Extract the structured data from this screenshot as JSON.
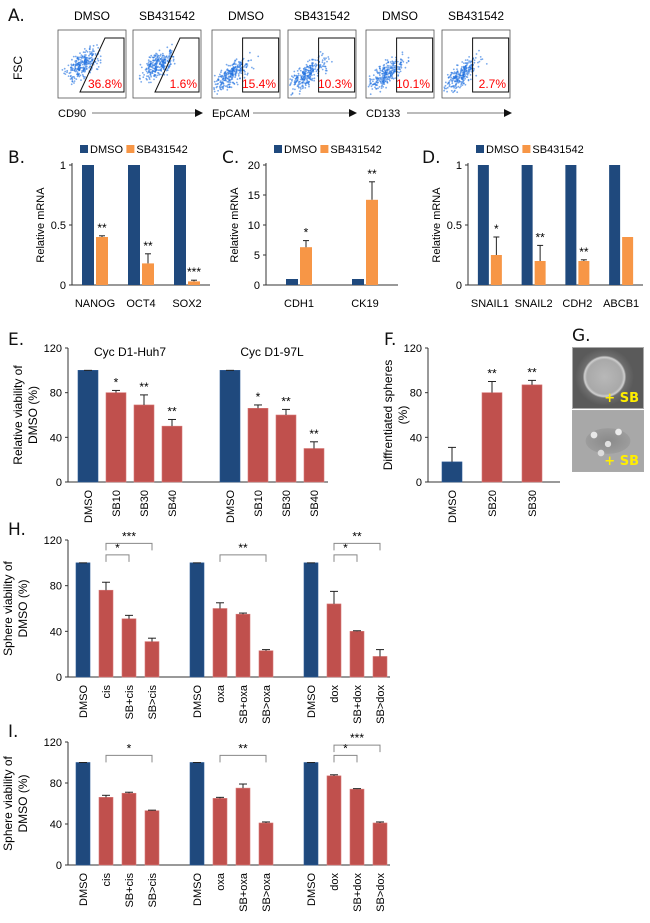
{
  "panel_labels": {
    "A": "A.",
    "B": "B.",
    "C": "C.",
    "D": "D.",
    "E": "E.",
    "F": "F.",
    "G": "G.",
    "H": "H.",
    "I": "I."
  },
  "colors": {
    "dmso": "#1f497d",
    "sb": "#f79646",
    "treat": "#c0504d",
    "pct": "#ff0000",
    "dots": "#1e6fe0",
    "sb_text": "#ffee00"
  },
  "flow": {
    "ylabel": "FSC",
    "plots": [
      {
        "title": "DMSO",
        "pct": "36.8%",
        "marker": "CD90",
        "gate": "slant"
      },
      {
        "title": "SB431542",
        "pct": "1.6%",
        "marker": "CD90",
        "gate": "slant"
      },
      {
        "title": "DMSO",
        "pct": "15.4%",
        "marker": "EpCAM",
        "gate": "rect"
      },
      {
        "title": "SB431542",
        "pct": "10.3%",
        "marker": "EpCAM",
        "gate": "rect"
      },
      {
        "title": "DMSO",
        "pct": "10.1%",
        "marker": "CD133",
        "gate": "rect"
      },
      {
        "title": "SB431542",
        "pct": "2.7%",
        "marker": "CD133",
        "gate": "rect"
      }
    ],
    "markers": [
      "CD90",
      "EpCAM",
      "CD133"
    ]
  },
  "G": {
    "label1": "+ SB",
    "label2": "+ SB"
  },
  "chart_data": [
    {
      "id": "B",
      "type": "bar",
      "ylabel": "Relative mRNA",
      "ylim": [
        0,
        1
      ],
      "yticks": [
        0,
        0.5,
        1
      ],
      "yticklabels": [
        "0",
        "0.5",
        "1"
      ],
      "legend": [
        "DMSO",
        "SB431542"
      ],
      "categories": [
        "NANOG",
        "OCT4",
        "SOX2"
      ],
      "series": [
        {
          "name": "DMSO",
          "values": [
            1,
            1,
            1
          ],
          "err": [
            0,
            0,
            0
          ]
        },
        {
          "name": "SB431542",
          "values": [
            0.4,
            0.18,
            0.03
          ],
          "err": [
            0.01,
            0.08,
            0.01
          ]
        }
      ],
      "sig": [
        "**",
        "**",
        "***"
      ]
    },
    {
      "id": "C",
      "type": "bar",
      "ylabel": "Relative mRNA",
      "ylim": [
        0,
        20
      ],
      "yticks": [
        0,
        5,
        10,
        15,
        20
      ],
      "yticklabels": [
        "0",
        "5",
        "10",
        "15",
        "20"
      ],
      "legend": [
        "DMSO",
        "SB431542"
      ],
      "categories": [
        "CDH1",
        "CK19"
      ],
      "series": [
        {
          "name": "DMSO",
          "values": [
            1,
            1
          ],
          "err": [
            0,
            0
          ]
        },
        {
          "name": "SB431542",
          "values": [
            6.3,
            14.2
          ],
          "err": [
            1.1,
            3.0
          ]
        }
      ],
      "sig": [
        "*",
        "**"
      ]
    },
    {
      "id": "D",
      "type": "bar",
      "ylabel": "Relative mRNA",
      "ylim": [
        0,
        1
      ],
      "yticks": [
        0,
        0.5,
        1
      ],
      "yticklabels": [
        "0",
        "0.5",
        "1"
      ],
      "legend": [
        "DMSO",
        "SB431542"
      ],
      "categories": [
        "SNAIL1",
        "SNAIL2",
        "CDH2",
        "ABCB1"
      ],
      "series": [
        {
          "name": "DMSO",
          "values": [
            1,
            1,
            1,
            1
          ],
          "err": [
            0,
            0,
            0,
            0
          ]
        },
        {
          "name": "SB431542",
          "values": [
            0.25,
            0.2,
            0.2,
            0.4
          ],
          "err": [
            0.15,
            0.13,
            0.01,
            0
          ]
        }
      ],
      "sig": [
        "*",
        "**",
        "**",
        ""
      ]
    },
    {
      "id": "E",
      "type": "bar",
      "ylabel": [
        "Relative viability of",
        "DMSO (%)"
      ],
      "ylim": [
        0,
        120
      ],
      "yticks": [
        0,
        40,
        80,
        120
      ],
      "yticklabels": [
        "0",
        "40",
        "80",
        "120"
      ],
      "groups": [
        {
          "title": "Cyc D1-Huh7",
          "categories": [
            "DMSO",
            "SB10",
            "SB30",
            "SB40"
          ],
          "values": [
            100,
            80,
            69,
            50
          ],
          "err": [
            0,
            2,
            9,
            6
          ],
          "sig": [
            "",
            "*",
            "**",
            "**"
          ]
        },
        {
          "title": "Cyc D1-97L",
          "categories": [
            "DMSO",
            "SB10",
            "SB30",
            "SB40"
          ],
          "values": [
            100,
            66,
            60,
            30
          ],
          "err": [
            0,
            3,
            5,
            6
          ],
          "sig": [
            "",
            "*",
            "**",
            "**"
          ]
        }
      ]
    },
    {
      "id": "F",
      "type": "bar",
      "ylabel": [
        "Diffrentiated spheres",
        "(%)"
      ],
      "ylim": [
        0,
        120
      ],
      "yticks": [
        0,
        40,
        80,
        120
      ],
      "yticklabels": [
        "0",
        "40",
        "80",
        "120"
      ],
      "groups": [
        {
          "title": "",
          "categories": [
            "DMSO",
            "SB20",
            "SB30"
          ],
          "values": [
            18,
            80,
            87
          ],
          "err": [
            13,
            10,
            4
          ],
          "sig": [
            "",
            "**",
            "**"
          ]
        }
      ]
    },
    {
      "id": "H",
      "type": "bar",
      "ylabel": [
        "Sphere viability of",
        "DMSO (%)"
      ],
      "ylim": [
        0,
        120
      ],
      "yticks": [
        0,
        40,
        80,
        120
      ],
      "yticklabels": [
        "0",
        "40",
        "80",
        "120"
      ],
      "groups": [
        {
          "title": "",
          "categories": [
            "DMSO",
            "cis",
            "SB+cis",
            "SB>cis"
          ],
          "values": [
            100,
            76,
            51,
            31
          ],
          "err": [
            0,
            7,
            3,
            3
          ],
          "sig": [],
          "brackets": [
            {
              "from": 1,
              "to": 2,
              "label": "*",
              "level": 0
            },
            {
              "from": 1,
              "to": 3,
              "label": "***",
              "level": 1
            }
          ]
        },
        {
          "title": "",
          "categories": [
            "DMSO",
            "oxa",
            "SB+oxa",
            "SB>oxa"
          ],
          "values": [
            100,
            60,
            55,
            23
          ],
          "err": [
            0,
            5,
            1,
            1
          ],
          "sig": [],
          "brackets": [
            {
              "from": 1,
              "to": 3,
              "label": "**",
              "level": 0
            }
          ]
        },
        {
          "title": "",
          "categories": [
            "DMSO",
            "dox",
            "SB+dox",
            "SB>dox"
          ],
          "values": [
            100,
            64,
            40,
            18
          ],
          "err": [
            0,
            11,
            0.5,
            6
          ],
          "sig": [],
          "brackets": [
            {
              "from": 1,
              "to": 2,
              "label": "*",
              "level": 0
            },
            {
              "from": 1,
              "to": 3,
              "label": "**",
              "level": 1
            }
          ]
        }
      ]
    },
    {
      "id": "I",
      "type": "bar",
      "ylabel": [
        "Sphere viability of",
        "DMSO (%)"
      ],
      "ylim": [
        0,
        120
      ],
      "yticks": [
        0,
        40,
        80,
        120
      ],
      "yticklabels": [
        "0",
        "40",
        "80",
        "120"
      ],
      "groups": [
        {
          "title": "",
          "categories": [
            "DMSO",
            "cis",
            "SB+cis",
            "SB>cis"
          ],
          "values": [
            100,
            66,
            70,
            53
          ],
          "err": [
            0,
            2,
            1,
            0.5
          ],
          "sig": [],
          "brackets": [
            {
              "from": 1,
              "to": 3,
              "label": "*",
              "level": 0
            }
          ]
        },
        {
          "title": "",
          "categories": [
            "DMSO",
            "oxa",
            "SB+oxa",
            "SB>oxa"
          ],
          "values": [
            100,
            65,
            75,
            41
          ],
          "err": [
            0,
            1,
            4,
            1
          ],
          "sig": [],
          "brackets": [
            {
              "from": 1,
              "to": 3,
              "label": "**",
              "level": 0
            }
          ]
        },
        {
          "title": "",
          "categories": [
            "DMSO",
            "dox",
            "SB+dox",
            "SB>dox"
          ],
          "values": [
            100,
            87,
            74,
            41
          ],
          "err": [
            0,
            1,
            0.5,
            1
          ],
          "sig": [],
          "brackets": [
            {
              "from": 1,
              "to": 2,
              "label": "*",
              "level": 0
            },
            {
              "from": 1,
              "to": 3,
              "label": "***",
              "level": 1
            }
          ]
        }
      ]
    }
  ]
}
